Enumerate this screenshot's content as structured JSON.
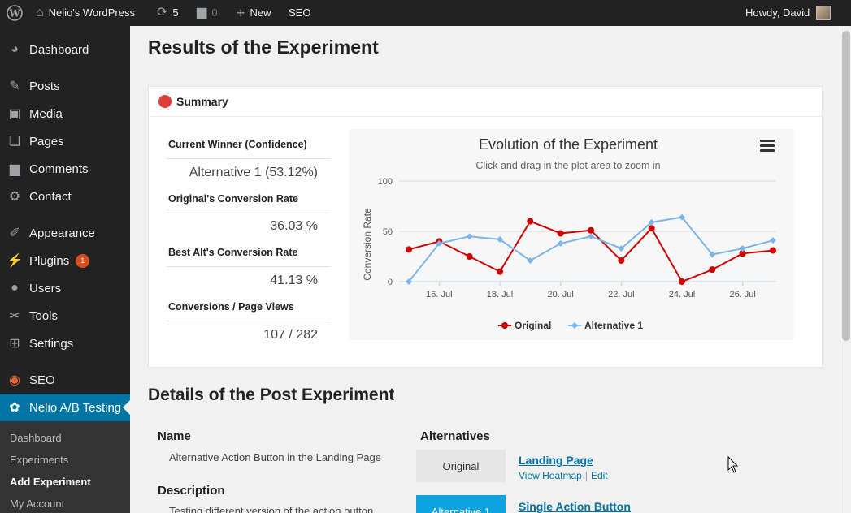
{
  "adminbar": {
    "site_name": "Nelio's WordPress",
    "updates_count": "5",
    "comments_count": "0",
    "new_label": "New",
    "seo_label": "SEO",
    "greeting": "Howdy, David"
  },
  "sidebar": {
    "items": [
      {
        "label": "Dashboard",
        "icon": "dashboard-icon"
      },
      {
        "label": "Posts",
        "icon": "pin-icon"
      },
      {
        "label": "Media",
        "icon": "media-icon"
      },
      {
        "label": "Pages",
        "icon": "pages-icon"
      },
      {
        "label": "Comments",
        "icon": "comment-icon"
      },
      {
        "label": "Contact",
        "icon": "gear-icon"
      },
      {
        "label": "Appearance",
        "icon": "brush-icon"
      },
      {
        "label": "Plugins",
        "icon": "plug-icon",
        "badge": "1"
      },
      {
        "label": "Users",
        "icon": "user-icon"
      },
      {
        "label": "Tools",
        "icon": "wrench-icon"
      },
      {
        "label": "Settings",
        "icon": "settings-icon"
      },
      {
        "label": "SEO",
        "icon": "seo-icon"
      },
      {
        "label": "Nelio A/B Testing",
        "icon": "nelio-icon"
      }
    ],
    "submenu": [
      "Dashboard",
      "Experiments",
      "Add Experiment",
      "My Account"
    ]
  },
  "page": {
    "title": "Results of the Experiment",
    "summary_title": "Summary",
    "stats": [
      {
        "label": "Current Winner (Confidence)",
        "value": "Alternative 1 (53.12%)"
      },
      {
        "label": "Original's Conversion Rate",
        "value": "36.03 %"
      },
      {
        "label": "Best Alt's Conversion Rate",
        "value": "41.13 %"
      },
      {
        "label": "Conversions / Page Views",
        "value": "107 / 282"
      }
    ],
    "details_title": "Details of the Post Experiment",
    "name_label": "Name",
    "name_value": "Alternative Action Button in the Landing Page",
    "description_label": "Description",
    "description_value": "Testing different version of the action button",
    "alternatives_label": "Alternatives",
    "alternatives": [
      {
        "button": "Original",
        "link": "Landing Page",
        "action1": "View Heatmap",
        "action2": "Edit"
      },
      {
        "button": "Alternative 1",
        "link": "Single Action Button"
      }
    ]
  },
  "colors": {
    "original": "#cc0000",
    "alternative": "#7cb5ec",
    "active_menu": "#0074a2"
  },
  "chart_data": {
    "type": "line",
    "title": "Evolution of the Experiment",
    "subtitle": "Click and drag in the plot area to zoom in",
    "xlabel": "",
    "ylabel": "Conversion Rate",
    "ylim": [
      0,
      100
    ],
    "yticks": [
      0,
      50,
      100
    ],
    "x": [
      "15. Jul",
      "16. Jul",
      "17. Jul",
      "18. Jul",
      "19. Jul",
      "20. Jul",
      "21. Jul",
      "22. Jul",
      "23. Jul",
      "24. Jul",
      "25. Jul",
      "26. Jul",
      "27. Jul"
    ],
    "xtick_labels": [
      "16. Jul",
      "18. Jul",
      "20. Jul",
      "22. Jul",
      "24. Jul",
      "26. Jul"
    ],
    "series": [
      {
        "name": "Original",
        "values": [
          32,
          40,
          25,
          10,
          60,
          48,
          51,
          21,
          53,
          0,
          12,
          28,
          31
        ]
      },
      {
        "name": "Alternative 1",
        "values": [
          0,
          38,
          45,
          42,
          21,
          38,
          45,
          33,
          59,
          64,
          27,
          33,
          41
        ]
      }
    ],
    "legend": "bottom",
    "grid": true
  }
}
